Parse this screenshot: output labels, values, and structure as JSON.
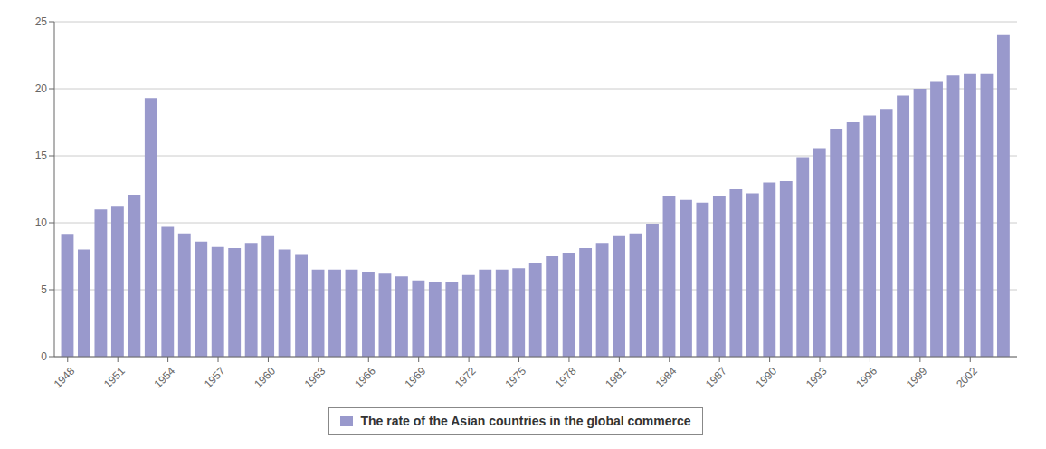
{
  "chart_data": {
    "type": "bar",
    "x": [
      1948,
      1949,
      1950,
      1951,
      1952,
      1953,
      1954,
      1955,
      1956,
      1957,
      1958,
      1959,
      1960,
      1961,
      1962,
      1963,
      1964,
      1965,
      1966,
      1967,
      1968,
      1969,
      1970,
      1971,
      1972,
      1973,
      1974,
      1975,
      1976,
      1977,
      1978,
      1979,
      1980,
      1981,
      1982,
      1983,
      1984,
      1985,
      1986,
      1987,
      1988,
      1989,
      1990,
      1991,
      1992,
      1993,
      1994,
      1995,
      1996,
      1997,
      1998,
      1999,
      2000,
      2001,
      2002,
      2003,
      2004
    ],
    "series": [
      {
        "name": "The rate of the Asian countries in the global commerce",
        "color": "#9999cc",
        "values": [
          9.1,
          8.0,
          11.0,
          11.2,
          12.1,
          19.3,
          9.7,
          9.2,
          8.6,
          8.2,
          8.1,
          8.5,
          9.0,
          8.0,
          7.6,
          6.5,
          6.5,
          6.5,
          6.3,
          6.2,
          6.0,
          5.7,
          5.6,
          5.6,
          6.1,
          6.5,
          6.5,
          6.6,
          7.0,
          7.5,
          7.7,
          8.1,
          8.5,
          9.0,
          9.2,
          9.9,
          12.0,
          11.7,
          11.5,
          12.0,
          12.5,
          12.2,
          13.0,
          13.1,
          14.9,
          15.5,
          17.0,
          17.5,
          18.0,
          18.5,
          19.5,
          20.0,
          20.5,
          21.0,
          21.1,
          21.1,
          24.0
        ]
      }
    ],
    "xlim": [
      1947.2,
      2004.8
    ],
    "xticks": [
      1948,
      1951,
      1954,
      1957,
      1960,
      1963,
      1966,
      1969,
      1972,
      1975,
      1978,
      1981,
      1984,
      1987,
      1990,
      1993,
      1996,
      1999,
      2002
    ],
    "ylim": [
      0,
      25
    ],
    "yticks": [
      0,
      5,
      10,
      15,
      20,
      25
    ],
    "grid": true,
    "legend": "bottom"
  }
}
